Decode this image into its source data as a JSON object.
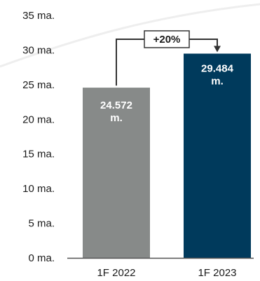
{
  "chart_data": {
    "type": "bar",
    "categories": [
      "1F 2022",
      "1F 2023"
    ],
    "values": [
      24.572,
      29.484
    ],
    "data_labels": [
      [
        "24.572",
        "m."
      ],
      [
        "29.484",
        "m."
      ]
    ],
    "y_ticks": [
      {
        "value": 0,
        "label": "0 ma."
      },
      {
        "value": 5,
        "label": "5 ma."
      },
      {
        "value": 10,
        "label": "10 ma."
      },
      {
        "value": 15,
        "label": "15 ma."
      },
      {
        "value": 20,
        "label": "20 ma."
      },
      {
        "value": 25,
        "label": "25 ma."
      },
      {
        "value": 30,
        "label": "30 ma."
      },
      {
        "value": 35,
        "label": "35 ma."
      }
    ],
    "ylim": [
      0,
      35
    ],
    "grid": false,
    "annotation": {
      "text": "+20%",
      "from": 0,
      "to": 1
    },
    "colors": {
      "bars": [
        "#878a89",
        "#003a5c"
      ],
      "axis": "#555555",
      "annotation": "#333333",
      "swoosh": "#eeeeee"
    }
  }
}
